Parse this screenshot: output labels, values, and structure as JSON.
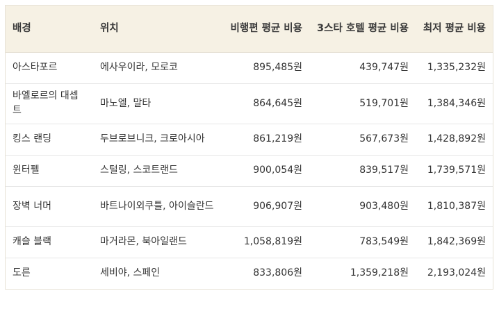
{
  "table": {
    "headers": [
      "배경",
      "위치",
      "비행편 평균 비용",
      "3스타 호텔 평균 비용",
      "최저 평균 비용"
    ],
    "rows": [
      [
        "아스타포르",
        "에사우이라, 모로코",
        "895,485원",
        "439,747원",
        "1,335,232원"
      ],
      [
        "바엘로르의 대셉트",
        "마노엘, 말타",
        "864,645원",
        "519,701원",
        "1,384,346원"
      ],
      [
        "킹스 랜딩",
        "두브로브니크, 크로아시아",
        "861,219원",
        "567,673원",
        "1,428,892원"
      ],
      [
        "윈터펠",
        "스털링, 스코트랜드",
        "900,054원",
        "839,517원",
        "1,739,571원"
      ],
      [
        "장벽 너머",
        "바트나이외쿠틀, 아이슬란드",
        "906,907원",
        "903,480원",
        "1,810,387원"
      ],
      [
        "캐슬 블랙",
        "마거라몬, 북아일랜드",
        "1,058,819원",
        "783,549원",
        "1,842,369원"
      ],
      [
        "도른",
        "세비야, 스페인",
        "833,806원",
        "1,359,218원",
        "2,193,024원"
      ]
    ]
  }
}
